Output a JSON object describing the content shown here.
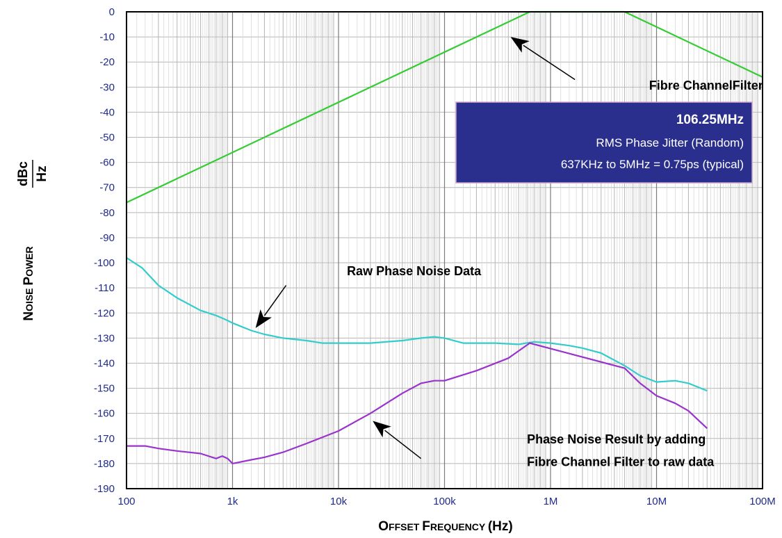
{
  "chart_data": {
    "type": "line",
    "title": "",
    "xlabel": {
      "prefix": "O",
      "prefix_rest": "FFSET ",
      "mid": "F",
      "mid_rest": "REQUENCY ",
      "unit": "(Hz)"
    },
    "ylabel": {
      "w1_first": "N",
      "w1_rest": "OISE ",
      "w2_first": "P",
      "w2_rest": "OWER",
      "unit_num": "dBc",
      "unit_den": "Hz"
    },
    "xscale": "log",
    "xlim": [
      100,
      100000000
    ],
    "ylim": [
      -190,
      0
    ],
    "grid": true,
    "xticks": [
      {
        "value": 100,
        "label": "100"
      },
      {
        "value": 1000,
        "label": "1k"
      },
      {
        "value": 10000,
        "label": "10k"
      },
      {
        "value": 100000,
        "label": "100k"
      },
      {
        "value": 1000000,
        "label": "1M"
      },
      {
        "value": 10000000,
        "label": "10M"
      },
      {
        "value": 100000000,
        "label": "100M"
      }
    ],
    "yticks": [
      0,
      -10,
      -20,
      -30,
      -40,
      -50,
      -60,
      -70,
      -80,
      -90,
      -100,
      -110,
      -120,
      -130,
      -140,
      -150,
      -160,
      -170,
      -180,
      -190
    ],
    "colors": {
      "filter": "#33cc33",
      "raw": "#33cccc",
      "result": "#9933cc",
      "box_bg": "#2a2f8e",
      "tick_text": "#1f2a8c"
    },
    "series": [
      {
        "key": "filter",
        "x": [
          100,
          637000,
          5000000,
          100000000
        ],
        "y": [
          -76,
          0,
          0,
          -26
        ]
      },
      {
        "key": "raw",
        "x": [
          100,
          140,
          200,
          300,
          500,
          700,
          900,
          1000,
          1500,
          2000,
          3000,
          5000,
          7000,
          10000,
          20000,
          40000,
          60000,
          80000,
          100000,
          150000,
          300000,
          500000,
          700000,
          1000000,
          1500000,
          2000000,
          3000000,
          5000000,
          7000000,
          10000000,
          15000000,
          20000000,
          30000000
        ],
        "y": [
          -98,
          -102,
          -109,
          -114,
          -119,
          -121,
          -123,
          -124,
          -127,
          -128.5,
          -130,
          -131,
          -132,
          -132,
          -132,
          -131,
          -130,
          -129.5,
          -130,
          -132,
          -132,
          -132.5,
          -131.5,
          -132,
          -133,
          -134,
          -136,
          -141,
          -145,
          -147.5,
          -147,
          -148,
          -151
        ]
      },
      {
        "key": "result",
        "x": [
          100,
          150,
          200,
          300,
          500,
          700,
          800,
          900,
          1000,
          1500,
          2000,
          3000,
          5000,
          10000,
          20000,
          40000,
          60000,
          80000,
          100000,
          200000,
          400000,
          637000,
          5000000,
          7000000,
          10000000,
          15000000,
          20000000,
          30000000
        ],
        "y": [
          -173,
          -173,
          -174,
          -175,
          -176,
          -178,
          -177,
          -178,
          -180,
          -178.5,
          -177.5,
          -175.5,
          -172,
          -167,
          -160,
          -152,
          -148,
          -147,
          -147,
          -143,
          -138,
          -132,
          -142,
          -148,
          -153,
          -156,
          -159,
          -166
        ]
      }
    ],
    "annotations": [
      {
        "key": "filter_label",
        "text": "Fibre ChannelFilter",
        "x": 8500000,
        "y": -31
      },
      {
        "key": "raw_label",
        "text": "Raw Phase Noise Data",
        "x": 12000,
        "y": -105
      },
      {
        "key": "result_line1",
        "text": "Phase Noise Result by adding",
        "x": 600000,
        "y": -172
      },
      {
        "key": "result_line2",
        "text": "Fibre Channel Filter to raw data",
        "x": 600000,
        "y": -181
      }
    ],
    "arrows": [
      {
        "key": "filter_arrow",
        "from": {
          "x": 1700000,
          "y": -27
        },
        "to": {
          "x": 420000,
          "y": -10
        }
      },
      {
        "key": "raw_arrow",
        "from": {
          "x": 3200,
          "y": -109
        },
        "to": {
          "x": 1650,
          "y": -126
        }
      },
      {
        "key": "result_arrow",
        "from": {
          "x": 60000,
          "y": -178
        },
        "to": {
          "x": 21000,
          "y": -163
        }
      }
    ],
    "info_box": {
      "line1": "106.25MHz",
      "line2": "RMS Phase Jitter (Random)",
      "line3": "637KHz to 5MHz = 0.75ps (typical)"
    }
  }
}
